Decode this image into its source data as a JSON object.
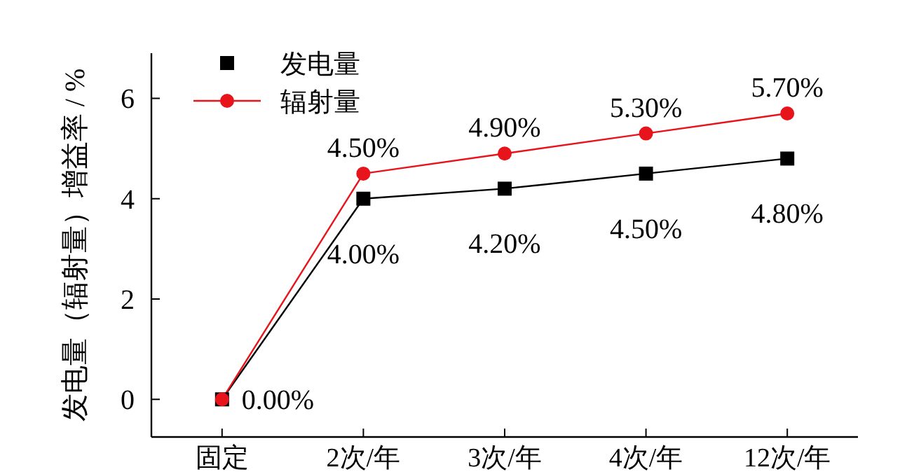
{
  "chart_data": {
    "type": "line",
    "ylabel": "发电量（辐射量）增益率 / %",
    "categories": [
      "固定",
      "2次/年",
      "3次/年",
      "4次/年",
      "12次/年"
    ],
    "ylim": [
      -0.75,
      6.9
    ],
    "yticks": [
      0,
      2,
      4,
      6
    ],
    "grid": false,
    "legend": "top left",
    "line_style": "solid",
    "series": [
      {
        "name": "发电量",
        "color": "#000000",
        "marker": "square",
        "values": [
          0,
          4.0,
          4.2,
          4.5,
          4.8
        ],
        "value_labels": [
          "0.00%",
          "4.00%",
          "4.20%",
          "4.50%",
          "4.80%"
        ]
      },
      {
        "name": "辐射量",
        "color": "#e8141c",
        "marker": "circle",
        "values": [
          0,
          4.5,
          4.9,
          5.3,
          5.7
        ],
        "value_labels": [
          null,
          "4.50%",
          "4.90%",
          "5.30%",
          "5.70%"
        ]
      }
    ]
  }
}
